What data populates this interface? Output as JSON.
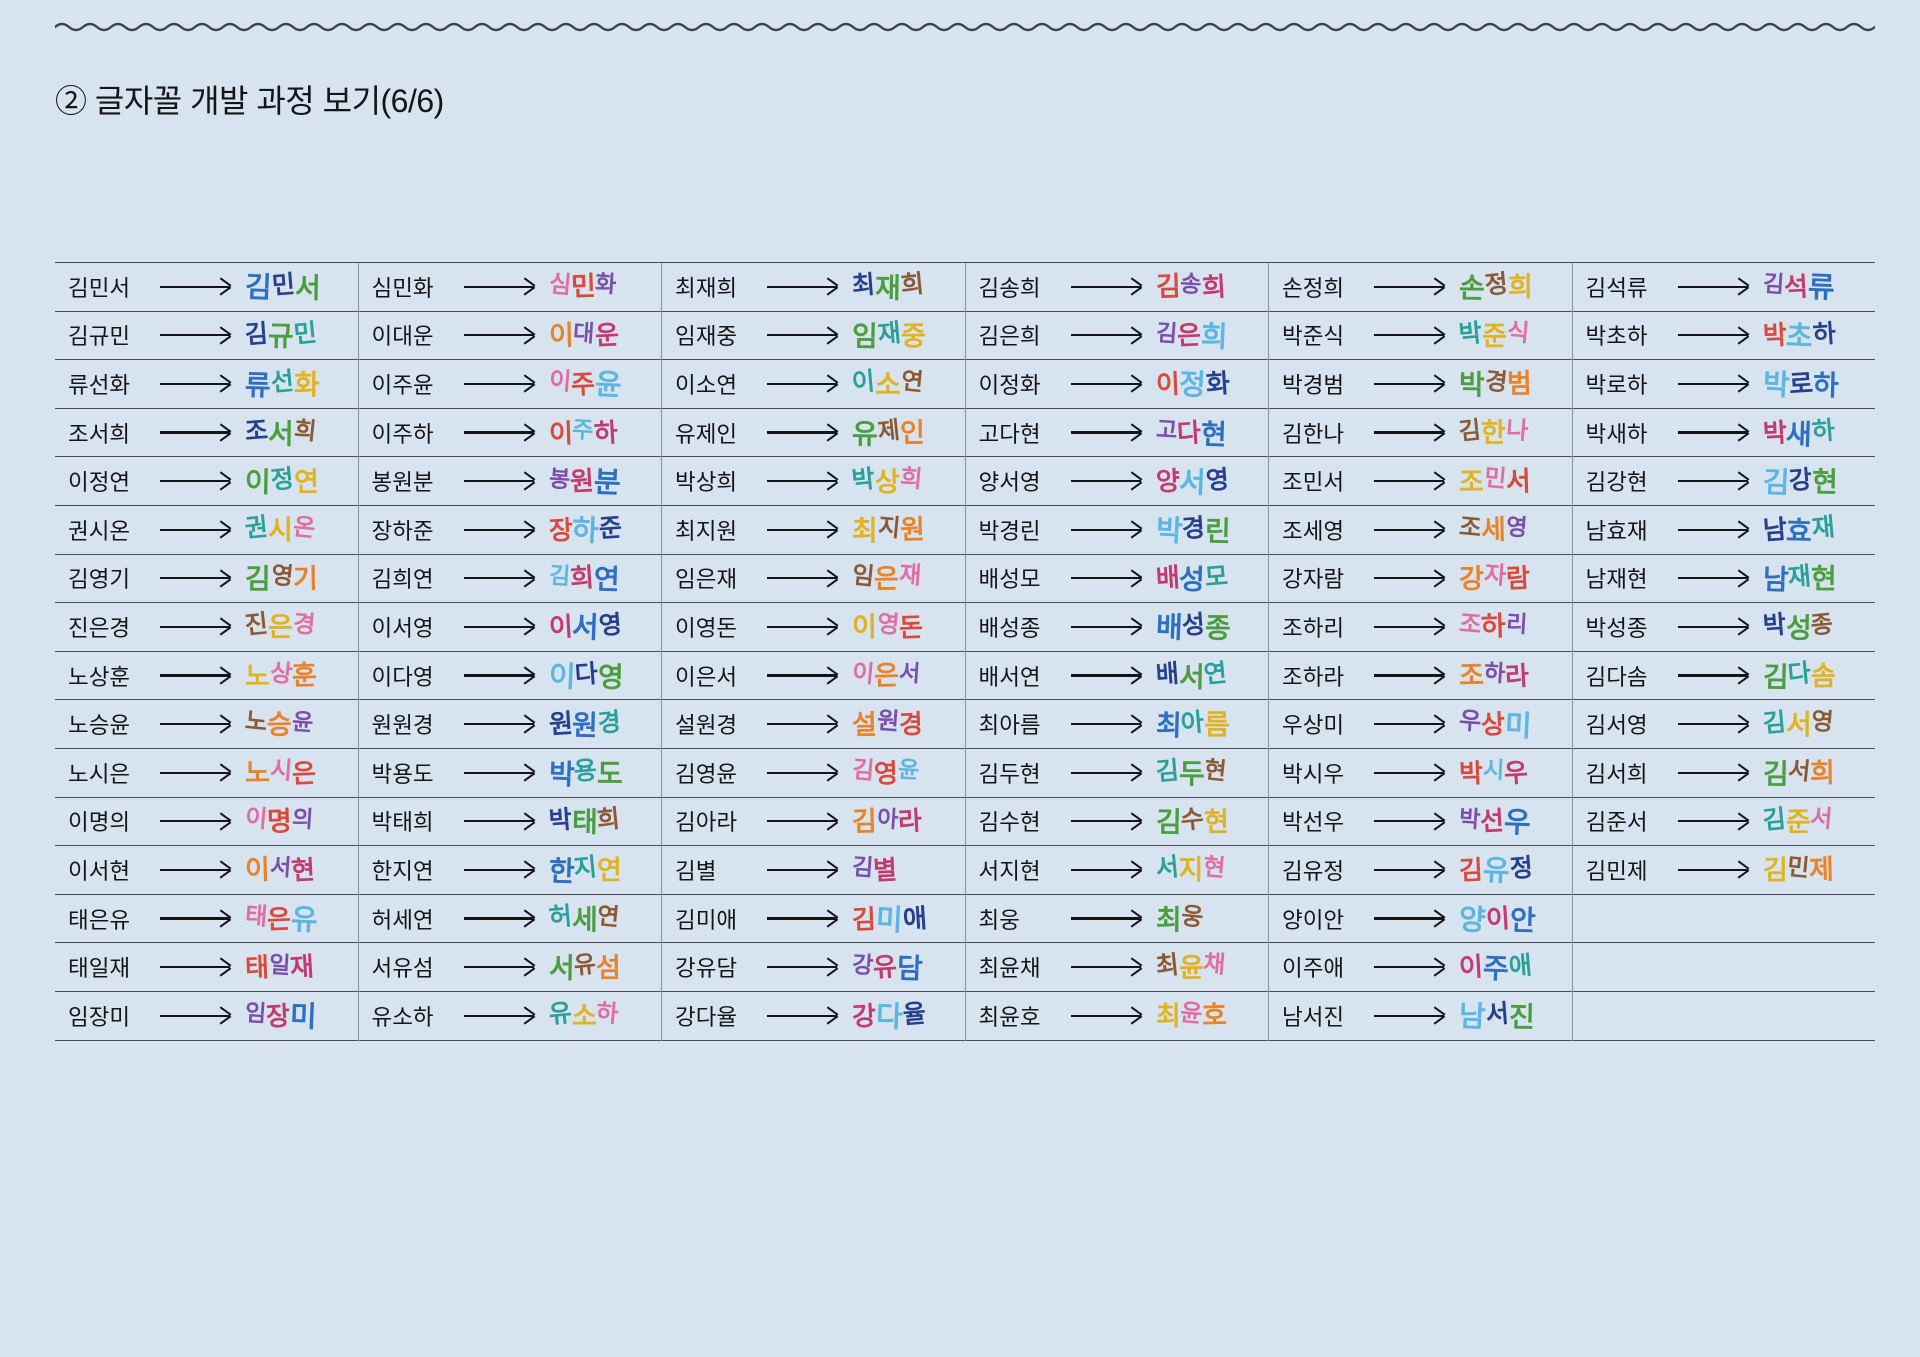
{
  "page": {
    "title": "② 글자꼴 개발 과정 보기(6/6)"
  },
  "icons": {
    "top_decoration": "wavy-line",
    "cell_connector": "right-arrow"
  },
  "colors": {
    "background": "#d8e3f0",
    "text": "#141517",
    "row_line": "#4a4e54",
    "column_line": "#8b9299",
    "crayon_palette": [
      "#d94a3d",
      "#e8832a",
      "#e0b322",
      "#4a9e3f",
      "#2f6fc0",
      "#5bb7e0",
      "#7a4fa8",
      "#df6fa2",
      "#8a5a34",
      "#2aa198",
      "#27408b",
      "#c23b6e"
    ]
  },
  "table": {
    "description": "student name → hand-drawn lettering of the same name",
    "columns": [
      {
        "names": [
          "김민서",
          "김규민",
          "류선화",
          "조서희",
          "이정연",
          "권시온",
          "김영기",
          "진은경",
          "노상훈",
          "노승윤",
          "노시은",
          "이명의",
          "이서현",
          "태은유",
          "태일재",
          "임장미"
        ]
      },
      {
        "names": [
          "심민화",
          "이대운",
          "이주윤",
          "이주하",
          "봉원분",
          "장하준",
          "김희연",
          "이서영",
          "이다영",
          "원원경",
          "박용도",
          "박태희",
          "한지연",
          "허세연",
          "서유섬",
          "유소하"
        ]
      },
      {
        "names": [
          "최재희",
          "임재중",
          "이소연",
          "유제인",
          "박상희",
          "최지원",
          "임은재",
          "이영돈",
          "이은서",
          "설원경",
          "김영윤",
          "김아라",
          "김별",
          "김미애",
          "강유담",
          "강다율"
        ]
      },
      {
        "names": [
          "김송희",
          "김은희",
          "이정화",
          "고다현",
          "양서영",
          "박경린",
          "배성모",
          "배성종",
          "배서연",
          "최아름",
          "김두현",
          "김수현",
          "서지현",
          "최웅",
          "최윤채",
          "최윤호"
        ]
      },
      {
        "names": [
          "손정희",
          "박준식",
          "박경범",
          "김한나",
          "조민서",
          "조세영",
          "강자람",
          "조하리",
          "조하라",
          "우상미",
          "박시우",
          "박선우",
          "김유정",
          "양이안",
          "이주애",
          "남서진"
        ]
      },
      {
        "names": [
          "김석류",
          "박초하",
          "박로하",
          "박새하",
          "김강현",
          "남효재",
          "남재현",
          "박성종",
          "김다솜",
          "김서영",
          "김서희",
          "김준서",
          "김민제",
          "",
          "",
          ""
        ]
      }
    ]
  }
}
